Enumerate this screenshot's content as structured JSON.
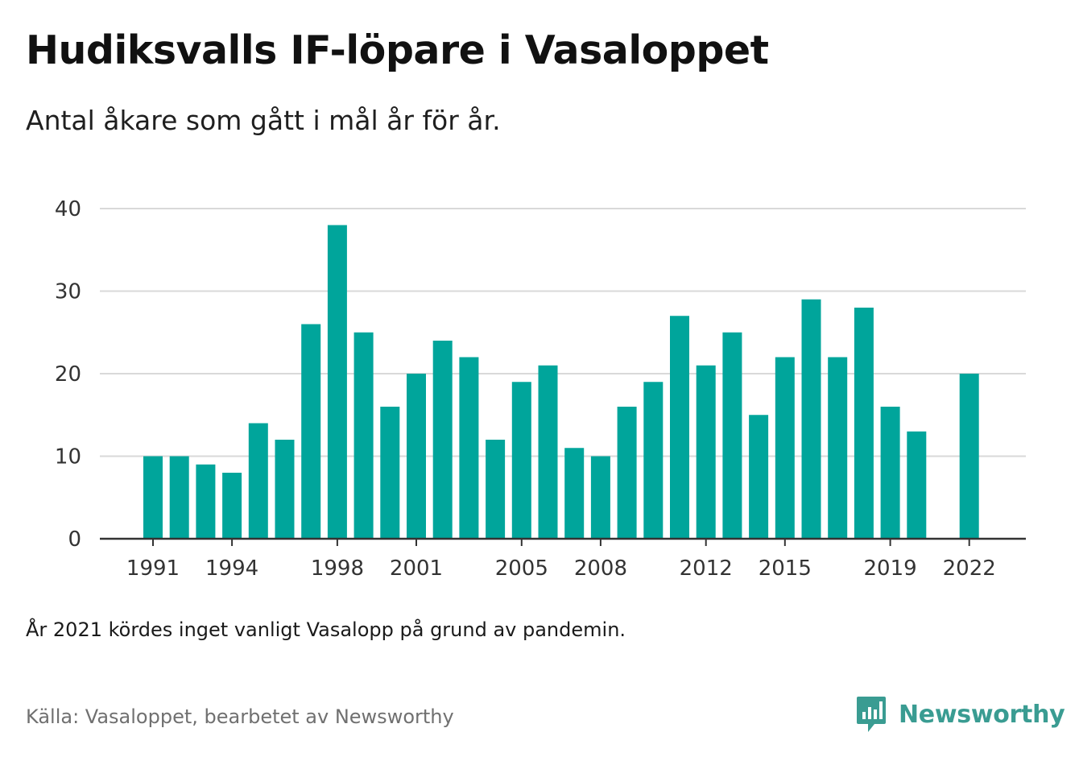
{
  "header": {
    "title": "Hudiksvalls IF-löpare i Vasaloppet",
    "subtitle": "Antal åkare som gått i mål år för år."
  },
  "footer": {
    "note": "År 2021 kördes inget vanligt Vasalopp på grund av pandemin.",
    "source": "Källa: Vasaloppet, bearbetet av Newsworthy",
    "brand": "Newsworthy"
  },
  "colors": {
    "bar": "#00a59b",
    "grid": "#d9d9d9",
    "axis": "#333333",
    "brand": "#3a9c92"
  },
  "chart_data": {
    "type": "bar",
    "title": "Hudiksvalls IF-löpare i Vasaloppet",
    "subtitle": "Antal åkare som gått i mål år för år.",
    "xlabel": "",
    "ylabel": "",
    "ylim": [
      0,
      40
    ],
    "yticks": [
      0,
      10,
      20,
      30,
      40
    ],
    "grid": true,
    "legend": "none",
    "x": [
      1991,
      1992,
      1993,
      1994,
      1995,
      1996,
      1997,
      1998,
      1999,
      2000,
      2001,
      2002,
      2003,
      2004,
      2005,
      2006,
      2007,
      2008,
      2009,
      2010,
      2011,
      2012,
      2013,
      2014,
      2015,
      2016,
      2017,
      2018,
      2019,
      2020,
      2021,
      2022
    ],
    "values": [
      10,
      10,
      9,
      8,
      14,
      12,
      26,
      38,
      25,
      16,
      20,
      24,
      22,
      12,
      19,
      21,
      11,
      10,
      16,
      19,
      27,
      21,
      25,
      15,
      22,
      29,
      22,
      28,
      16,
      13,
      null,
      20
    ],
    "xticks": [
      1991,
      1994,
      1998,
      2001,
      2005,
      2008,
      2012,
      2015,
      2019,
      2022
    ]
  }
}
